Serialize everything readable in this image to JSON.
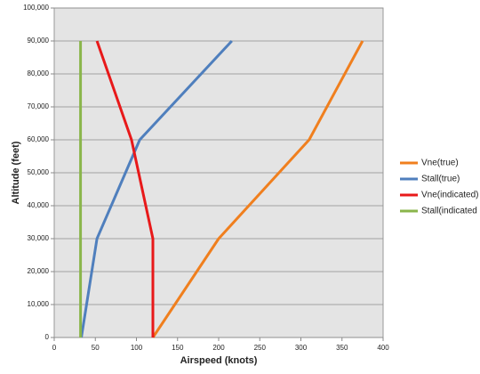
{
  "chart_data": {
    "type": "line",
    "xlabel": "Airspeed (knots)",
    "ylabel": "Altitude (feet)",
    "xlim": [
      0,
      400
    ],
    "xticks": [
      0,
      50,
      100,
      150,
      200,
      250,
      300,
      350,
      400
    ],
    "ylim": [
      0,
      100000
    ],
    "yticks": [
      0,
      {
        "value": 10000,
        "label": "10,000"
      },
      {
        "value": 20000,
        "label": "20,000"
      },
      {
        "value": 30000,
        "label": "30,000"
      },
      {
        "value": 40000,
        "label": "40,000"
      },
      {
        "value": 50000,
        "label": "50,000"
      },
      {
        "value": 60000,
        "label": "60,000"
      },
      {
        "value": 70000,
        "label": "70,000"
      },
      {
        "value": 80000,
        "label": "80,000"
      },
      {
        "value": 90000,
        "label": "90,000"
      },
      {
        "value": 100000,
        "label": "100,000"
      }
    ],
    "grid": true,
    "legend": "right",
    "series": [
      {
        "name": "Vne(true)",
        "color": "#f07f1e",
        "x": [
          120,
          200,
          310,
          375
        ],
        "values": [
          0,
          30000,
          60000,
          90000
        ]
      },
      {
        "name": "Stall(true)",
        "color": "#4f7fbd",
        "x": [
          33,
          52,
          104,
          216
        ],
        "values": [
          0,
          30000,
          60000,
          90000
        ]
      },
      {
        "name": "Vne(indicated)",
        "color": "#e8191a",
        "x": [
          120,
          120,
          94,
          52
        ],
        "values": [
          0,
          30000,
          60000,
          90000
        ]
      },
      {
        "name": "Stall(indicated",
        "color": "#8ab54b",
        "x": [
          32,
          32
        ],
        "values": [
          0,
          90000
        ]
      }
    ]
  }
}
